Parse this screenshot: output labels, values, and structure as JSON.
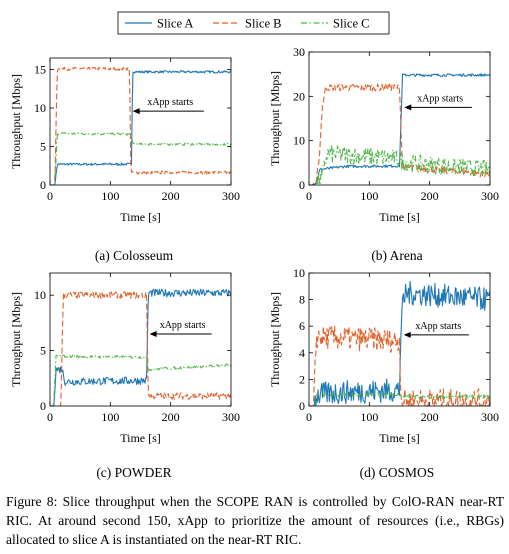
{
  "legend": {
    "items": [
      {
        "label": "Slice A",
        "color": "#1f77b4",
        "dash": "solid"
      },
      {
        "label": "Slice B",
        "color": "#e0622a",
        "dash": "dashed"
      },
      {
        "label": "Slice C",
        "color": "#4fb848",
        "dash": "dashdot"
      }
    ]
  },
  "caption": "Figure 8: Slice throughput when the SCOPE RAN is controlled by ColO-RAN near-RT RIC. At around second 150, xApp to prioritize the amount of resources (i.e., RBGs) allocated to slice A is instantiated on the near-RT RIC.",
  "chart_data": [
    {
      "type": "line",
      "subtitle": "(a) Colosseum",
      "xlabel": "Time [s]",
      "ylabel": "Throughput [Mbps]",
      "xlim": [
        0,
        300
      ],
      "ylim": [
        0,
        16.5
      ],
      "xticks": [
        0,
        100,
        200,
        300
      ],
      "yticks": [
        0,
        5,
        10,
        15
      ],
      "annotation": {
        "text": "xApp starts",
        "x_from": 255,
        "x_to": 137,
        "y": 9.6
      },
      "series": [
        {
          "name": "Slice A",
          "color": "#1f77b4",
          "dash": "solid",
          "noise": 0.15,
          "points": [
            [
              0,
              0
            ],
            [
              8,
              0
            ],
            [
              12,
              2.7
            ],
            [
              135,
              2.7
            ],
            [
              137,
              14.7
            ],
            [
              300,
              14.7
            ]
          ]
        },
        {
          "name": "Slice B",
          "color": "#e0622a",
          "dash": "dashed",
          "noise": 0.2,
          "points": [
            [
              0,
              0
            ],
            [
              8,
              0
            ],
            [
              12,
              15.1
            ],
            [
              132,
              15.1
            ],
            [
              134,
              1.6
            ],
            [
              300,
              1.6
            ]
          ]
        },
        {
          "name": "Slice C",
          "color": "#4fb848",
          "dash": "dashdot",
          "noise": 0.15,
          "points": [
            [
              0,
              0
            ],
            [
              8,
              0
            ],
            [
              12,
              6.7
            ],
            [
              135,
              6.6
            ],
            [
              137,
              5.3
            ],
            [
              300,
              5.3
            ]
          ]
        }
      ]
    },
    {
      "type": "line",
      "subtitle": "(b) Arena",
      "xlabel": "Time [s]",
      "ylabel": "Throughput [Mbps]",
      "xlim": [
        0,
        300
      ],
      "ylim": [
        0,
        30
      ],
      "xticks": [
        0,
        100,
        200,
        300
      ],
      "yticks": [
        0,
        10,
        20,
        30
      ],
      "annotation": {
        "text": "xApp starts",
        "x_from": 270,
        "x_to": 158,
        "y": 17.5
      },
      "series": [
        {
          "name": "Slice A",
          "color": "#1f77b4",
          "dash": "solid",
          "noise": 0.3,
          "points": [
            [
              0,
              0
            ],
            [
              12,
              0.5
            ],
            [
              18,
              3.5
            ],
            [
              60,
              4.2
            ],
            [
              150,
              4.3
            ],
            [
              155,
              24.8
            ],
            [
              300,
              24.8
            ]
          ]
        },
        {
          "name": "Slice B",
          "color": "#e0622a",
          "dash": "dashed",
          "noise": 0.8,
          "points": [
            [
              0,
              0
            ],
            [
              12,
              0
            ],
            [
              18,
              8
            ],
            [
              22,
              18
            ],
            [
              28,
              22
            ],
            [
              150,
              22
            ],
            [
              155,
              4
            ],
            [
              300,
              2.5
            ]
          ]
        },
        {
          "name": "Slice C",
          "color": "#4fb848",
          "dash": "dashdot",
          "noise": 2.0,
          "points": [
            [
              0,
              0
            ],
            [
              12,
              0
            ],
            [
              22,
              2
            ],
            [
              30,
              7
            ],
            [
              150,
              6
            ],
            [
              155,
              5
            ],
            [
              300,
              3.5
            ]
          ]
        }
      ]
    },
    {
      "type": "line",
      "subtitle": "(c) POWDER",
      "xlabel": "Time [s]",
      "ylabel": "Throughput [Mbps]",
      "xlim": [
        0,
        300
      ],
      "ylim": [
        0,
        12
      ],
      "xticks": [
        0,
        100,
        200,
        300
      ],
      "yticks": [
        0,
        5,
        10
      ],
      "annotation": {
        "text": "xApp starts",
        "x_from": 268,
        "x_to": 165,
        "y": 6.5
      },
      "series": [
        {
          "name": "Slice A",
          "color": "#1f77b4",
          "dash": "solid",
          "noise": 0.35,
          "points": [
            [
              0,
              0
            ],
            [
              6,
              0
            ],
            [
              10,
              3.3
            ],
            [
              20,
              3.3
            ],
            [
              25,
              2.2
            ],
            [
              160,
              2.3
            ],
            [
              163,
              10.2
            ],
            [
              300,
              10.2
            ]
          ]
        },
        {
          "name": "Slice B",
          "color": "#e0622a",
          "dash": "dashed",
          "noise": 0.3,
          "points": [
            [
              0,
              0
            ],
            [
              18,
              0
            ],
            [
              22,
              10
            ],
            [
              160,
              10
            ],
            [
              163,
              0.9
            ],
            [
              300,
              0.9
            ]
          ]
        },
        {
          "name": "Slice C",
          "color": "#4fb848",
          "dash": "dashdot",
          "noise": 0.12,
          "points": [
            [
              0,
              0
            ],
            [
              6,
              0
            ],
            [
              10,
              4.5
            ],
            [
              160,
              4.4
            ],
            [
              163,
              3.3
            ],
            [
              300,
              3.7
            ]
          ]
        }
      ]
    },
    {
      "type": "line",
      "subtitle": "(d) COSMOS",
      "xlabel": "Time [s]",
      "ylabel": "Throughput [Mbps]",
      "xlim": [
        0,
        300
      ],
      "ylim": [
        0,
        10
      ],
      "xticks": [
        0,
        100,
        200,
        300
      ],
      "yticks": [
        0,
        2,
        4,
        6,
        8,
        10
      ],
      "annotation": {
        "text": "xApp starts",
        "x_from": 265,
        "x_to": 157,
        "y": 5.35
      },
      "series": [
        {
          "name": "Slice A",
          "color": "#1f77b4",
          "dash": "solid",
          "noise": 0.9,
          "points": [
            [
              0,
              0
            ],
            [
              8,
              0
            ],
            [
              12,
              0.8
            ],
            [
              40,
              1.0
            ],
            [
              150,
              1.2
            ],
            [
              153,
              6.8
            ],
            [
              160,
              8.5
            ],
            [
              300,
              8.0
            ]
          ]
        },
        {
          "name": "Slice B",
          "color": "#e0622a",
          "dash": "dashed",
          "noise": 0.9,
          "points": [
            [
              0,
              0
            ],
            [
              8,
              0
            ],
            [
              12,
              5.2
            ],
            [
              150,
              4.9
            ],
            [
              153,
              0.4
            ],
            [
              300,
              0.4
            ]
          ]
        },
        {
          "name": "Slice C",
          "color": "#4fb848",
          "dash": "dashdot",
          "noise": 0.12,
          "points": [
            [
              0,
              0
            ],
            [
              8,
              0
            ],
            [
              12,
              0.8
            ],
            [
              150,
              0.9
            ],
            [
              153,
              0.7
            ],
            [
              300,
              0.7
            ]
          ]
        }
      ]
    }
  ]
}
